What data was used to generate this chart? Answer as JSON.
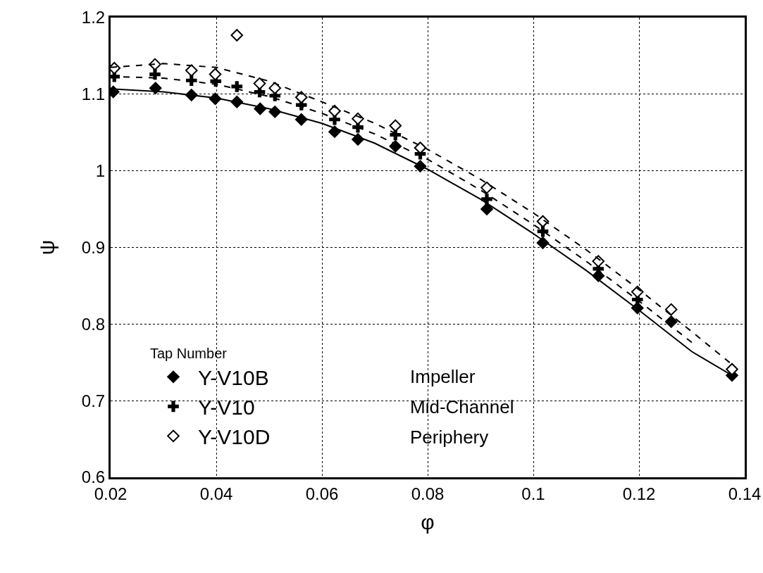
{
  "chart_data": {
    "type": "scatter",
    "xlabel": "φ",
    "ylabel": "ψ",
    "legend_title": "Tap Number",
    "legend": "bottom left",
    "grid": true,
    "xlim": [
      0.02,
      0.14
    ],
    "xticks": [
      0.02,
      0.04,
      0.06,
      0.08,
      0.1,
      0.12,
      0.14
    ],
    "ylim": [
      0.6,
      1.2
    ],
    "yticks": [
      0.6,
      0.7,
      0.8,
      0.9,
      1,
      1.1,
      1.2
    ],
    "annotations": [
      "Impeller",
      "Mid-Channel",
      "Periphery"
    ],
    "series": [
      {
        "name": "Y-V10B",
        "marker": "diamond",
        "color": "#000000",
        "x": [
          0.0205,
          0.0285,
          0.0353,
          0.0398,
          0.0439,
          0.0483,
          0.0511,
          0.0561,
          0.0624,
          0.0668,
          0.0739,
          0.0786,
          0.0912,
          0.1018,
          0.1123,
          0.1197,
          0.1261,
          0.1376
        ],
        "values": [
          1.103,
          1.108,
          1.099,
          1.094,
          1.09,
          1.081,
          1.077,
          1.067,
          1.051,
          1.041,
          1.032,
          1.006,
          0.95,
          0.906,
          0.863,
          0.821,
          0.803,
          0.733
        ]
      },
      {
        "name": "Y-V10",
        "marker": "cross",
        "color": "#000000",
        "x": [
          0.0207,
          0.0284,
          0.0353,
          0.0399,
          0.0439,
          0.0482,
          0.0511,
          0.0561,
          0.0624,
          0.0668,
          0.0739,
          0.0786,
          0.0912,
          0.1018,
          0.1123,
          0.1197
        ],
        "values": [
          1.123,
          1.126,
          1.118,
          1.117,
          1.11,
          1.103,
          1.098,
          1.086,
          1.067,
          1.057,
          1.047,
          1.022,
          0.963,
          0.921,
          0.872,
          0.832
        ]
      },
      {
        "name": "Y-V10D",
        "marker": "diamond",
        "color": "#ffffff",
        "x": [
          0.0207,
          0.0284,
          0.0353,
          0.0398,
          0.0439,
          0.0482,
          0.0511,
          0.0561,
          0.0624,
          0.0668,
          0.0739,
          0.0786,
          0.0912,
          0.1018,
          0.1123,
          0.1197,
          0.1261,
          0.1376
        ],
        "values": [
          1.134,
          1.139,
          1.131,
          1.126,
          1.177,
          1.114,
          1.108,
          1.096,
          1.078,
          1.068,
          1.059,
          1.03,
          0.978,
          0.934,
          0.882,
          0.842,
          0.819,
          0.741
        ]
      },
      {
        "type": "line",
        "line_style": "solid",
        "color": "#000000",
        "x": [
          0.02,
          0.03,
          0.04,
          0.05,
          0.06,
          0.07,
          0.08,
          0.09,
          0.1,
          0.11,
          0.12,
          0.13,
          0.1376
        ],
        "values": [
          1.107,
          1.103,
          1.095,
          1.081,
          1.062,
          1.036,
          1.002,
          0.963,
          0.918,
          0.87,
          0.818,
          0.764,
          0.733
        ]
      },
      {
        "type": "line",
        "line_style": "dashed",
        "color": "#000000",
        "x": [
          0.02,
          0.03,
          0.04,
          0.05,
          0.06,
          0.07,
          0.08,
          0.09,
          0.1,
          0.11,
          0.12,
          0.13
        ],
        "values": [
          1.123,
          1.121,
          1.113,
          1.097,
          1.075,
          1.048,
          1.015,
          0.975,
          0.93,
          0.882,
          0.83,
          0.776
        ]
      },
      {
        "type": "line",
        "line_style": "dashed",
        "color": "#000000",
        "x": [
          0.02,
          0.03,
          0.04,
          0.05,
          0.06,
          0.07,
          0.08,
          0.09,
          0.1,
          0.11,
          0.12,
          0.13,
          0.138
        ],
        "values": [
          1.135,
          1.14,
          1.135,
          1.117,
          1.09,
          1.062,
          1.028,
          0.989,
          0.945,
          0.897,
          0.845,
          0.79,
          0.745
        ]
      }
    ]
  }
}
